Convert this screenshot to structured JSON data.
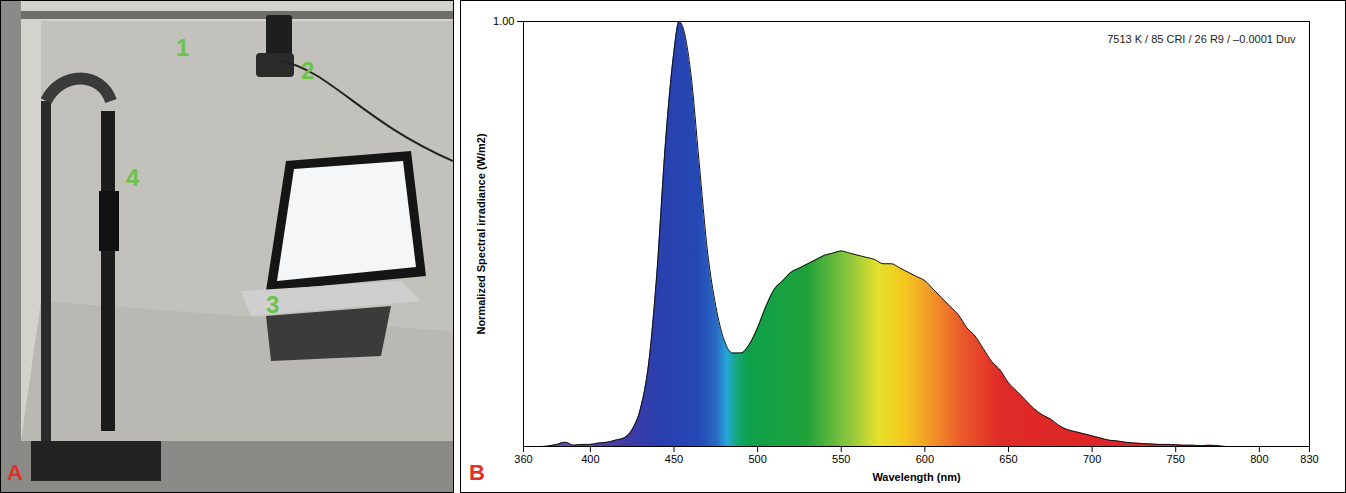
{
  "figure": {
    "panel_a": {
      "letter": "A",
      "labels": [
        "1",
        "2",
        "3",
        "4"
      ]
    }
  },
  "chart_data": {
    "type": "area",
    "panel": "B",
    "title": "7513 K / 85 CRI / 26 R9 / –0.0001 Duv",
    "x_label": "Wavelength (nm)",
    "y_label": "Normalized Spectral irradiance (W/m2)",
    "x": [
      360,
      370,
      380,
      385,
      390,
      395,
      400,
      405,
      410,
      415,
      420,
      425,
      430,
      435,
      440,
      445,
      450,
      453,
      455,
      460,
      465,
      470,
      475,
      480,
      485,
      490,
      495,
      500,
      505,
      510,
      515,
      520,
      525,
      530,
      535,
      540,
      545,
      550,
      555,
      560,
      565,
      570,
      575,
      580,
      585,
      590,
      595,
      600,
      605,
      610,
      615,
      620,
      625,
      630,
      635,
      640,
      645,
      650,
      655,
      660,
      665,
      670,
      675,
      680,
      685,
      690,
      695,
      700,
      705,
      710,
      715,
      720,
      725,
      730,
      735,
      740,
      745,
      750,
      755,
      760,
      765,
      770,
      775,
      780,
      790,
      830
    ],
    "values": [
      0,
      0,
      0.005,
      0.01,
      0.003,
      0.005,
      0.005,
      0.008,
      0.01,
      0.015,
      0.02,
      0.04,
      0.09,
      0.2,
      0.42,
      0.72,
      0.93,
      1.0,
      0.99,
      0.88,
      0.67,
      0.46,
      0.33,
      0.25,
      0.22,
      0.22,
      0.24,
      0.28,
      0.33,
      0.37,
      0.39,
      0.41,
      0.42,
      0.43,
      0.44,
      0.45,
      0.455,
      0.46,
      0.455,
      0.45,
      0.445,
      0.44,
      0.43,
      0.43,
      0.42,
      0.41,
      0.4,
      0.39,
      0.37,
      0.35,
      0.33,
      0.31,
      0.28,
      0.26,
      0.23,
      0.2,
      0.18,
      0.15,
      0.13,
      0.11,
      0.09,
      0.075,
      0.065,
      0.05,
      0.04,
      0.035,
      0.03,
      0.025,
      0.02,
      0.015,
      0.013,
      0.01,
      0.008,
      0.007,
      0.006,
      0.005,
      0.005,
      0.004,
      0.003,
      0.003,
      0.002,
      0.003,
      0.002,
      0,
      0,
      0
    ],
    "xlim": [
      360,
      830
    ],
    "xticks": [
      360,
      400,
      450,
      500,
      550,
      600,
      650,
      700,
      750,
      800,
      830
    ],
    "ylim": [
      0,
      1
    ],
    "yticks": [
      {
        "value": 1,
        "label": "1.00"
      }
    ]
  }
}
